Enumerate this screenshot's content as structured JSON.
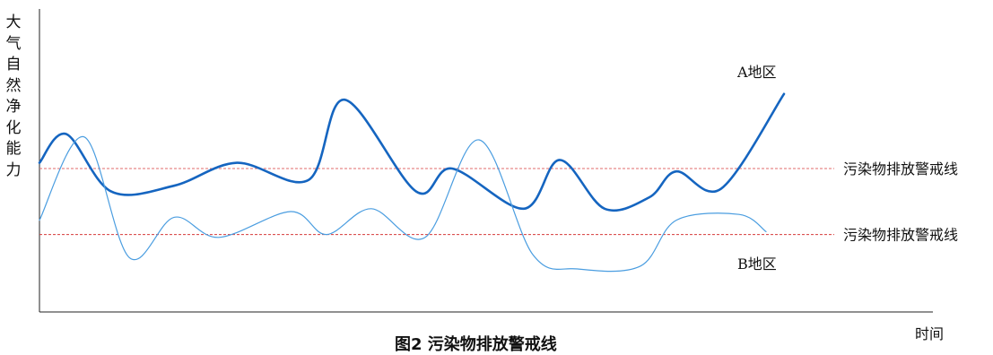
{
  "chart_data": {
    "type": "line",
    "title": "",
    "caption": "图2 污染物排放警戒线",
    "ylabel": "大气自然净化能力",
    "xlabel": "时间",
    "grid": false,
    "legend": "none",
    "series": [
      {
        "name": "A地区",
        "color": "#1565c0",
        "points": [
          [
            0,
            0.52
          ],
          [
            0.03,
            0.62
          ],
          [
            0.08,
            0.42
          ],
          [
            0.15,
            0.44
          ],
          [
            0.22,
            0.52
          ],
          [
            0.3,
            0.46
          ],
          [
            0.34,
            0.74
          ],
          [
            0.42,
            0.42
          ],
          [
            0.46,
            0.5
          ],
          [
            0.54,
            0.36
          ],
          [
            0.58,
            0.53
          ],
          [
            0.63,
            0.36
          ],
          [
            0.68,
            0.4
          ],
          [
            0.71,
            0.49
          ],
          [
            0.76,
            0.43
          ],
          [
            0.83,
            0.76
          ]
        ]
      },
      {
        "name": "B地区",
        "color": "#4a9de0",
        "points": [
          [
            0,
            0.32
          ],
          [
            0.05,
            0.61
          ],
          [
            0.1,
            0.19
          ],
          [
            0.15,
            0.33
          ],
          [
            0.2,
            0.26
          ],
          [
            0.28,
            0.35
          ],
          [
            0.32,
            0.27
          ],
          [
            0.37,
            0.36
          ],
          [
            0.43,
            0.26
          ],
          [
            0.49,
            0.6
          ],
          [
            0.55,
            0.2
          ],
          [
            0.6,
            0.15
          ],
          [
            0.67,
            0.16
          ],
          [
            0.71,
            0.32
          ],
          [
            0.78,
            0.34
          ],
          [
            0.81,
            0.28
          ]
        ]
      }
    ],
    "thresholds": [
      {
        "label": "污染物排放警戒线",
        "value": 0.5,
        "color": "#e26b6b"
      },
      {
        "label": "污染物排放警戒线",
        "value": 0.27,
        "color": "#d63a3a"
      }
    ]
  }
}
